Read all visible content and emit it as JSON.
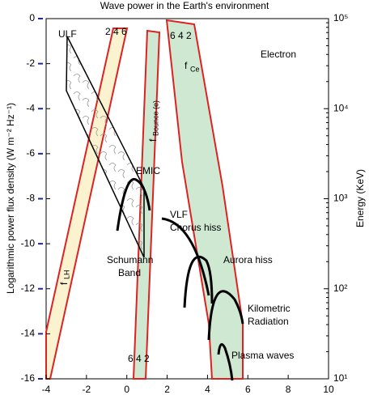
{
  "chart_data": {
    "type": "diagram",
    "title": "Wave power in the Earth's environment",
    "y_label": "Logarithmic power flux density (W m⁻² Hz⁻¹)",
    "y2_label": "Energy (KeV)",
    "xlim": [
      -4,
      10
    ],
    "xticks": [
      -4,
      -2,
      0,
      2,
      4,
      6,
      8,
      10
    ],
    "ylim": [
      -16,
      0
    ],
    "yticks": [
      -16,
      -14,
      -12,
      -10,
      -8,
      -6,
      -4,
      -2,
      0
    ],
    "y2lim": [
      10,
      100000
    ],
    "y2log": true,
    "y2ticks": [
      {
        "value": 10,
        "label": "10¹"
      },
      {
        "value": 100,
        "label": "10²"
      },
      {
        "value": 1000,
        "label": "10³"
      },
      {
        "value": 10000,
        "label": "10⁴"
      },
      {
        "value": 100000,
        "label": "10⁵"
      }
    ],
    "annotations": {
      "ulf": "ULF",
      "top_left_numbers": "2 4 6",
      "top_right_numbers": "6 4 2",
      "bottom_numbers": "6 4 2",
      "electron": "Electron",
      "fce": "f",
      "fce_sub": "Ce",
      "fbounce": "f",
      "fbounce_sub": "Bounce (e)",
      "flh": "f",
      "flh_sub": "LH",
      "emic": "EMIC",
      "vlf": "VLF",
      "chorus": "Chorus hiss",
      "aurora": "Aurora hiss",
      "schumann1": "Schumann",
      "schumann2": "Band",
      "kilometric1": "Kilometric",
      "kilometric2": "Radiation",
      "plasma": "Plasma waves"
    }
  }
}
